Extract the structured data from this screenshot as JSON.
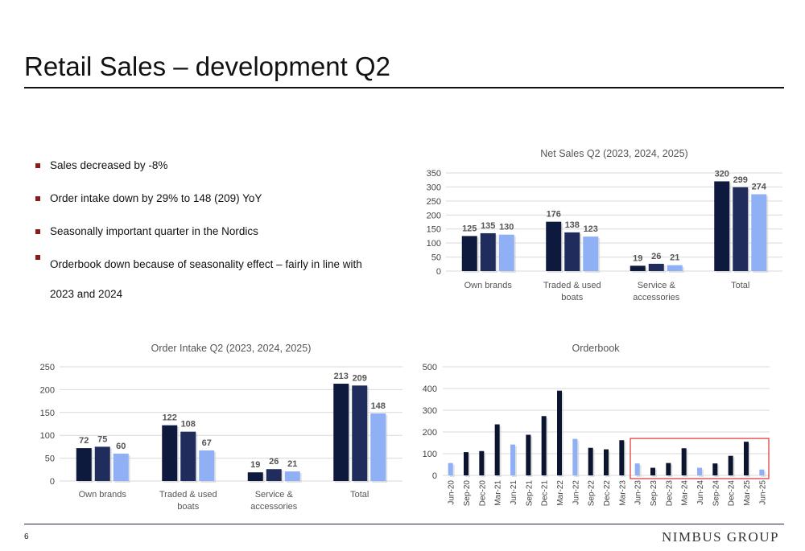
{
  "slide": {
    "title": "Retail Sales – development Q2",
    "page_number": "6",
    "logo_text": "NIMBUS GROUP"
  },
  "bullets": [
    "Sales decreased by -8%",
    "Order intake down by 29% to 148 (209) YoY",
    "Seasonally important quarter in the Nordics",
    "Orderbook down because of seasonality effect – fairly in line with 2023 and 2024"
  ],
  "colors": {
    "y2023": "#0d1a3d",
    "y2024": "#1f2c5c",
    "y2025": "#8fb0f4",
    "highlight_box": "#e03030",
    "orderbook_dark": "#0b1530",
    "orderbook_light": "#8fb0f4"
  },
  "chart_data": [
    {
      "id": "net-sales",
      "type": "bar",
      "title": "Net Sales Q2 (2023, 2024, 2025)",
      "categories": [
        [
          "Own brands"
        ],
        [
          "Traded & used",
          "boats"
        ],
        [
          "Service &",
          "accessories"
        ],
        [
          "Total"
        ]
      ],
      "series": [
        {
          "values": [
            125,
            176,
            19,
            320
          ]
        },
        {
          "values": [
            135,
            138,
            26,
            299
          ]
        },
        {
          "values": [
            130,
            123,
            21,
            274
          ]
        }
      ],
      "ylim": [
        0,
        350
      ],
      "yticks": [
        0,
        50,
        100,
        150,
        200,
        250,
        300,
        350
      ],
      "grid": true
    },
    {
      "id": "order-intake",
      "type": "bar",
      "title": "Order Intake Q2 (2023, 2024, 2025)",
      "categories": [
        [
          "Own brands"
        ],
        [
          "Traded & used",
          "boats"
        ],
        [
          "Service &",
          "accessories"
        ],
        [
          "Total"
        ]
      ],
      "series": [
        {
          "values": [
            72,
            122,
            19,
            213
          ]
        },
        {
          "values": [
            75,
            108,
            26,
            209
          ]
        },
        {
          "values": [
            60,
            67,
            21,
            148
          ]
        }
      ],
      "ylim": [
        0,
        250
      ],
      "yticks": [
        0,
        50,
        100,
        150,
        200,
        250
      ],
      "grid": true
    },
    {
      "id": "orderbook",
      "type": "bar",
      "title": "Orderbook",
      "categories": [
        "Jun-20",
        "Sep-20",
        "Dec-20",
        "Mar-21",
        "Jun-21",
        "Sep-21",
        "Dec-21",
        "Mar-22",
        "Jun-22",
        "Sep-22",
        "Dec-22",
        "Mar-23",
        "Jun-23",
        "Sep-23",
        "Dec-23",
        "Mar-24",
        "Jun-24",
        "Sep-24",
        "Dec-24",
        "Mar-25",
        "Jun-25"
      ],
      "values": [
        57,
        107,
        112,
        235,
        142,
        187,
        273,
        390,
        168,
        127,
        120,
        162,
        55,
        35,
        57,
        125,
        35,
        55,
        90,
        155,
        27
      ],
      "highlight": [
        "Jun-23",
        "Sep-23",
        "Dec-23",
        "Mar-24",
        "Jun-24",
        "Sep-24",
        "Dec-24",
        "Mar-25",
        "Jun-25"
      ],
      "light_bars": [
        "Jun-20",
        "Jun-21",
        "Jun-22",
        "Jun-23",
        "Jun-24",
        "Jun-25"
      ],
      "ylim": [
        0,
        500
      ],
      "yticks": [
        0,
        100,
        200,
        300,
        400,
        500
      ],
      "grid": true
    }
  ]
}
